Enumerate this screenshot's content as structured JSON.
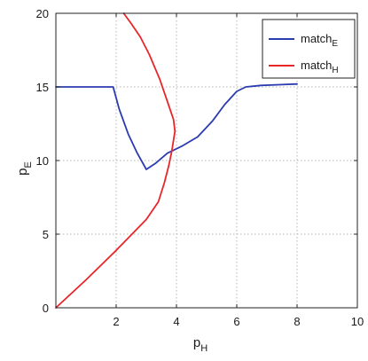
{
  "chart_data": {
    "type": "line",
    "xlabel": "p",
    "xlabel_sub": "H",
    "ylabel": "p",
    "ylabel_sub": "E",
    "xlim": [
      0,
      10
    ],
    "ylim": [
      0,
      20
    ],
    "xticks": [
      2,
      4,
      6,
      8,
      10
    ],
    "yticks": [
      0,
      5,
      10,
      15,
      20
    ],
    "x_tick_labels": [
      "2",
      "4",
      "6",
      "8",
      "10"
    ],
    "y_tick_labels": [
      "0",
      "5",
      "10",
      "15",
      "20"
    ],
    "grid": true,
    "legend_position": "top-right",
    "series": [
      {
        "name": "match",
        "name_sub": "E",
        "color": "#2a3cb0",
        "x": [
          0,
          1.9,
          2.1,
          2.4,
          2.7,
          3.0,
          3.3,
          3.7,
          4.2,
          4.7,
          5.2,
          5.6,
          6.0,
          6.3,
          6.8,
          7.4,
          8.0
        ],
        "y": [
          15,
          15,
          13.5,
          11.8,
          10.5,
          9.4,
          9.8,
          10.5,
          11.0,
          11.6,
          12.7,
          13.8,
          14.7,
          15.0,
          15.1,
          15.15,
          15.2
        ]
      },
      {
        "name": "match",
        "name_sub": "H",
        "color": "#e8262a",
        "x": [
          0,
          1.0,
          2.0,
          3.0,
          3.4,
          3.6,
          3.75,
          3.85,
          3.95,
          3.9,
          3.7,
          3.45,
          3.1,
          2.8,
          2.5,
          2.25
        ],
        "y": [
          0,
          1.9,
          3.9,
          6.0,
          7.2,
          8.5,
          9.7,
          10.7,
          12.0,
          12.8,
          14.0,
          15.5,
          17.2,
          18.4,
          19.3,
          20.0
        ]
      }
    ]
  }
}
